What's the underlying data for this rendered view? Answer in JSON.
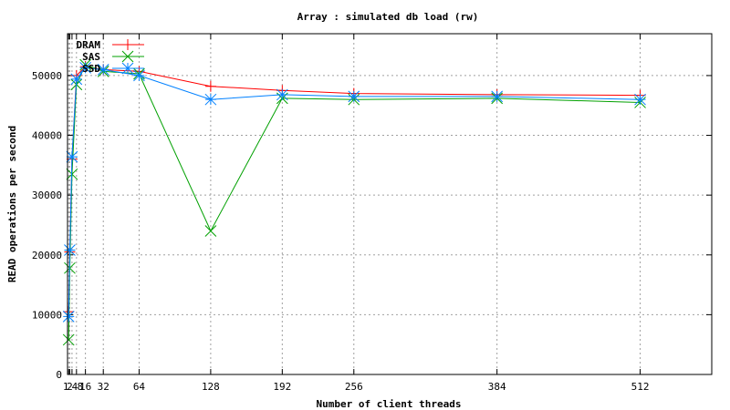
{
  "chart_data": {
    "type": "line",
    "title": "Array : simulated db load (rw)",
    "xlabel": "Number of client threads",
    "ylabel": "READ operations per second",
    "xlim": [
      0,
      576
    ],
    "ylim": [
      0,
      57000
    ],
    "xticks": [
      1,
      2,
      4,
      8,
      16,
      32,
      64,
      128,
      192,
      256,
      384,
      512
    ],
    "xtick_labels": [
      "1",
      "2",
      "4",
      "8",
      "16",
      "32",
      "64",
      "128",
      "192",
      "256",
      "384",
      "512"
    ],
    "yticks": [
      0,
      10000,
      20000,
      30000,
      40000,
      50000
    ],
    "ytick_labels": [
      "0",
      "10000",
      "20000",
      "30000",
      "40000",
      "50000"
    ],
    "grid": true,
    "legend_position": "top-left",
    "series": [
      {
        "name": "DRAM",
        "color": "#ff0000",
        "marker": "plus",
        "x": [
          1,
          2,
          4,
          8,
          16,
          32,
          64,
          128,
          192,
          256,
          384,
          512
        ],
        "y": [
          10500,
          20500,
          36000,
          50000,
          51500,
          51000,
          50700,
          48200,
          47500,
          47000,
          46800,
          46700
        ]
      },
      {
        "name": "SAS",
        "color": "#00a000",
        "marker": "cross",
        "x": [
          1,
          2,
          4,
          8,
          16,
          32,
          64,
          128,
          192,
          256,
          384,
          512
        ],
        "y": [
          5800,
          17800,
          33500,
          48500,
          51800,
          50700,
          50300,
          24000,
          46200,
          46000,
          46200,
          45500
        ]
      },
      {
        "name": "SSD",
        "color": "#0080ff",
        "marker": "star",
        "x": [
          1,
          2,
          4,
          8,
          16,
          32,
          64,
          128,
          192,
          256,
          384,
          512
        ],
        "y": [
          9700,
          20800,
          36400,
          49400,
          51300,
          51000,
          50000,
          46000,
          46800,
          46500,
          46500,
          46000
        ]
      }
    ]
  }
}
